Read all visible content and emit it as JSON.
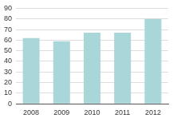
{
  "chart_data": {
    "type": "bar",
    "categories": [
      "2008",
      "2009",
      "2010",
      "2011",
      "2012"
    ],
    "values": [
      62,
      59,
      67,
      67,
      80
    ],
    "color": "#a9d6d8",
    "ylim": [
      0,
      90
    ],
    "yticks": [
      0,
      10,
      20,
      30,
      40,
      50,
      60,
      70,
      80,
      90
    ],
    "grid": true
  }
}
